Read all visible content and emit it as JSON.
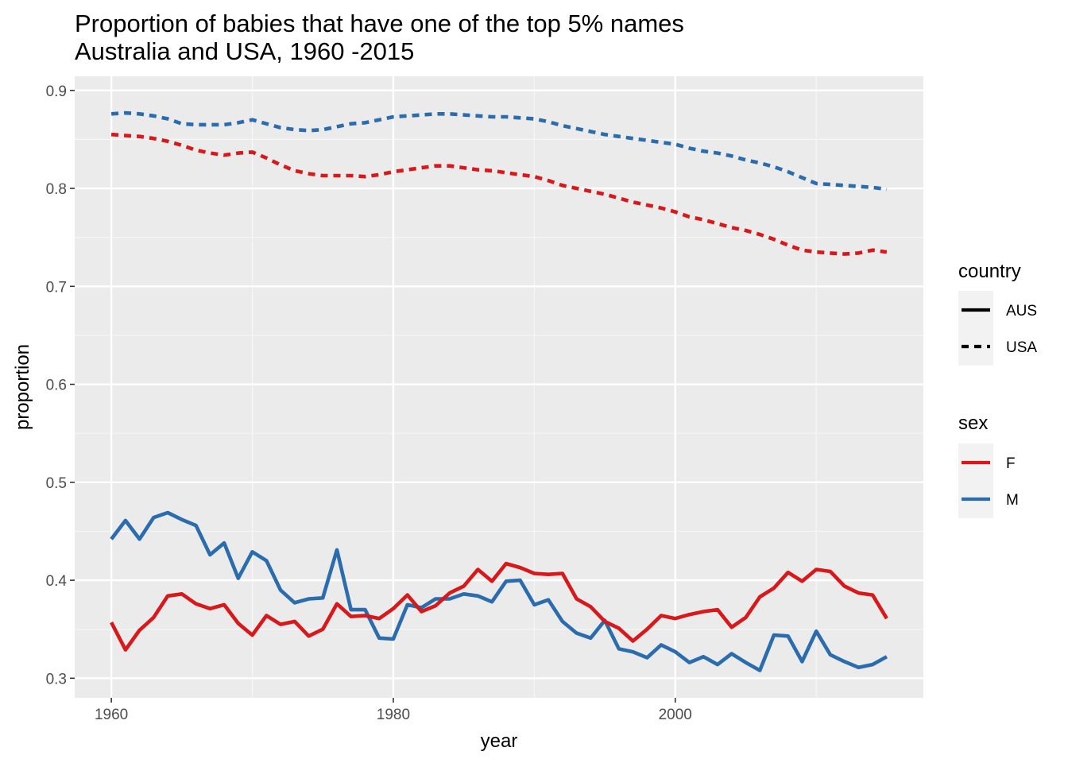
{
  "title": "Proportion of babies that have one of the top 5% names",
  "subtitle": "Australia and USA, 1960 -2015",
  "chart_data": {
    "type": "line",
    "xlabel": "year",
    "ylabel": "proportion",
    "xlim": [
      1957.4,
      2017.6
    ],
    "ylim": [
      0.28,
      0.9144
    ],
    "x_ticks": [
      1960,
      1980,
      2000
    ],
    "x_tick_labels": [
      "1960",
      "1980",
      "2000"
    ],
    "y_ticks": [
      0.3,
      0.4,
      0.5,
      0.6,
      0.7,
      0.8,
      0.9
    ],
    "y_tick_labels": [
      "0.3",
      "0.4",
      "0.5",
      "0.6",
      "0.7",
      "0.8",
      "0.9"
    ],
    "grid": true,
    "legend_position": "right",
    "legends": {
      "country": {
        "title": "country",
        "entries": [
          {
            "label": "AUS",
            "linetype": "solid"
          },
          {
            "label": "USA",
            "linetype": "dashed"
          }
        ]
      },
      "sex": {
        "title": "sex",
        "entries": [
          {
            "label": "F",
            "color": "#d7191c"
          },
          {
            "label": "M",
            "color": "#2b6cad"
          }
        ]
      }
    },
    "x": [
      1960,
      1961,
      1962,
      1963,
      1964,
      1965,
      1966,
      1967,
      1968,
      1969,
      1970,
      1971,
      1972,
      1973,
      1974,
      1975,
      1976,
      1977,
      1978,
      1979,
      1980,
      1981,
      1982,
      1983,
      1984,
      1985,
      1986,
      1987,
      1988,
      1989,
      1990,
      1991,
      1992,
      1993,
      1994,
      1995,
      1996,
      1997,
      1998,
      1999,
      2000,
      2001,
      2002,
      2003,
      2004,
      2005,
      2006,
      2007,
      2008,
      2009,
      2010,
      2011,
      2012,
      2013,
      2014,
      2015
    ],
    "series": [
      {
        "country": "USA",
        "sex": "M",
        "color": "#2b6cad",
        "linetype": "dashed",
        "values": [
          0.876,
          0.877,
          0.876,
          0.874,
          0.871,
          0.866,
          0.865,
          0.865,
          0.865,
          0.867,
          0.87,
          0.866,
          0.862,
          0.86,
          0.859,
          0.86,
          0.863,
          0.866,
          0.867,
          0.87,
          0.873,
          0.874,
          0.875,
          0.876,
          0.876,
          0.875,
          0.874,
          0.873,
          0.873,
          0.872,
          0.871,
          0.868,
          0.864,
          0.861,
          0.858,
          0.855,
          0.853,
          0.851,
          0.849,
          0.847,
          0.845,
          0.841,
          0.838,
          0.836,
          0.833,
          0.829,
          0.826,
          0.822,
          0.817,
          0.811,
          0.805,
          0.804,
          0.803,
          0.802,
          0.801,
          0.799
        ]
      },
      {
        "country": "USA",
        "sex": "F",
        "color": "#d7191c",
        "linetype": "dashed",
        "values": [
          0.855,
          0.854,
          0.853,
          0.851,
          0.848,
          0.844,
          0.839,
          0.836,
          0.834,
          0.836,
          0.837,
          0.831,
          0.824,
          0.818,
          0.815,
          0.813,
          0.813,
          0.813,
          0.812,
          0.814,
          0.817,
          0.819,
          0.821,
          0.823,
          0.823,
          0.821,
          0.819,
          0.818,
          0.816,
          0.814,
          0.812,
          0.808,
          0.803,
          0.8,
          0.797,
          0.794,
          0.79,
          0.786,
          0.783,
          0.78,
          0.776,
          0.771,
          0.768,
          0.764,
          0.76,
          0.757,
          0.753,
          0.748,
          0.742,
          0.737,
          0.735,
          0.734,
          0.733,
          0.734,
          0.737,
          0.735
        ]
      },
      {
        "country": "AUS",
        "sex": "M",
        "color": "#2b6cad",
        "linetype": "solid",
        "values": [
          0.442,
          0.461,
          0.442,
          0.464,
          0.469,
          0.462,
          0.456,
          0.426,
          0.438,
          0.402,
          0.429,
          0.42,
          0.39,
          0.377,
          0.381,
          0.382,
          0.431,
          0.37,
          0.37,
          0.341,
          0.34,
          0.375,
          0.372,
          0.381,
          0.381,
          0.386,
          0.384,
          0.378,
          0.399,
          0.4,
          0.375,
          0.38,
          0.358,
          0.346,
          0.341,
          0.359,
          0.33,
          0.327,
          0.321,
          0.334,
          0.327,
          0.316,
          0.322,
          0.314,
          0.325,
          0.316,
          0.308,
          0.344,
          0.343,
          0.317,
          0.348,
          0.324,
          0.317,
          0.311,
          0.314,
          0.322
        ]
      },
      {
        "country": "AUS",
        "sex": "F",
        "color": "#d7191c",
        "linetype": "solid",
        "values": [
          0.357,
          0.329,
          0.349,
          0.362,
          0.384,
          0.386,
          0.376,
          0.371,
          0.375,
          0.356,
          0.344,
          0.364,
          0.355,
          0.358,
          0.343,
          0.35,
          0.376,
          0.363,
          0.364,
          0.361,
          0.371,
          0.385,
          0.368,
          0.374,
          0.387,
          0.394,
          0.411,
          0.399,
          0.417,
          0.413,
          0.407,
          0.406,
          0.407,
          0.381,
          0.373,
          0.358,
          0.351,
          0.338,
          0.35,
          0.364,
          0.361,
          0.365,
          0.368,
          0.37,
          0.352,
          0.362,
          0.383,
          0.392,
          0.408,
          0.399,
          0.411,
          0.409,
          0.394,
          0.387,
          0.385,
          0.361
        ]
      }
    ]
  }
}
